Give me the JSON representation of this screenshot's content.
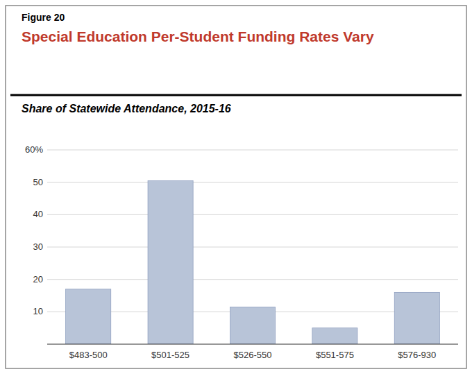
{
  "chart_data": {
    "type": "bar",
    "annotations": [
      "Figure 20"
    ],
    "title": "Special Education Per-Student Funding Rates Vary",
    "subtitle": "Share of Statewide Attendance, 2015-16",
    "categories": [
      "$483-500",
      "$501-525",
      "$526-550",
      "$551-575",
      "$576-930"
    ],
    "values": [
      17,
      50.5,
      11.5,
      5,
      16
    ],
    "color": "#b8c4d8",
    "ylim": [
      0,
      60
    ],
    "yticks": [
      10,
      20,
      30,
      40,
      50,
      {
        "value": 60,
        "label": "60%"
      }
    ],
    "grid": true
  }
}
